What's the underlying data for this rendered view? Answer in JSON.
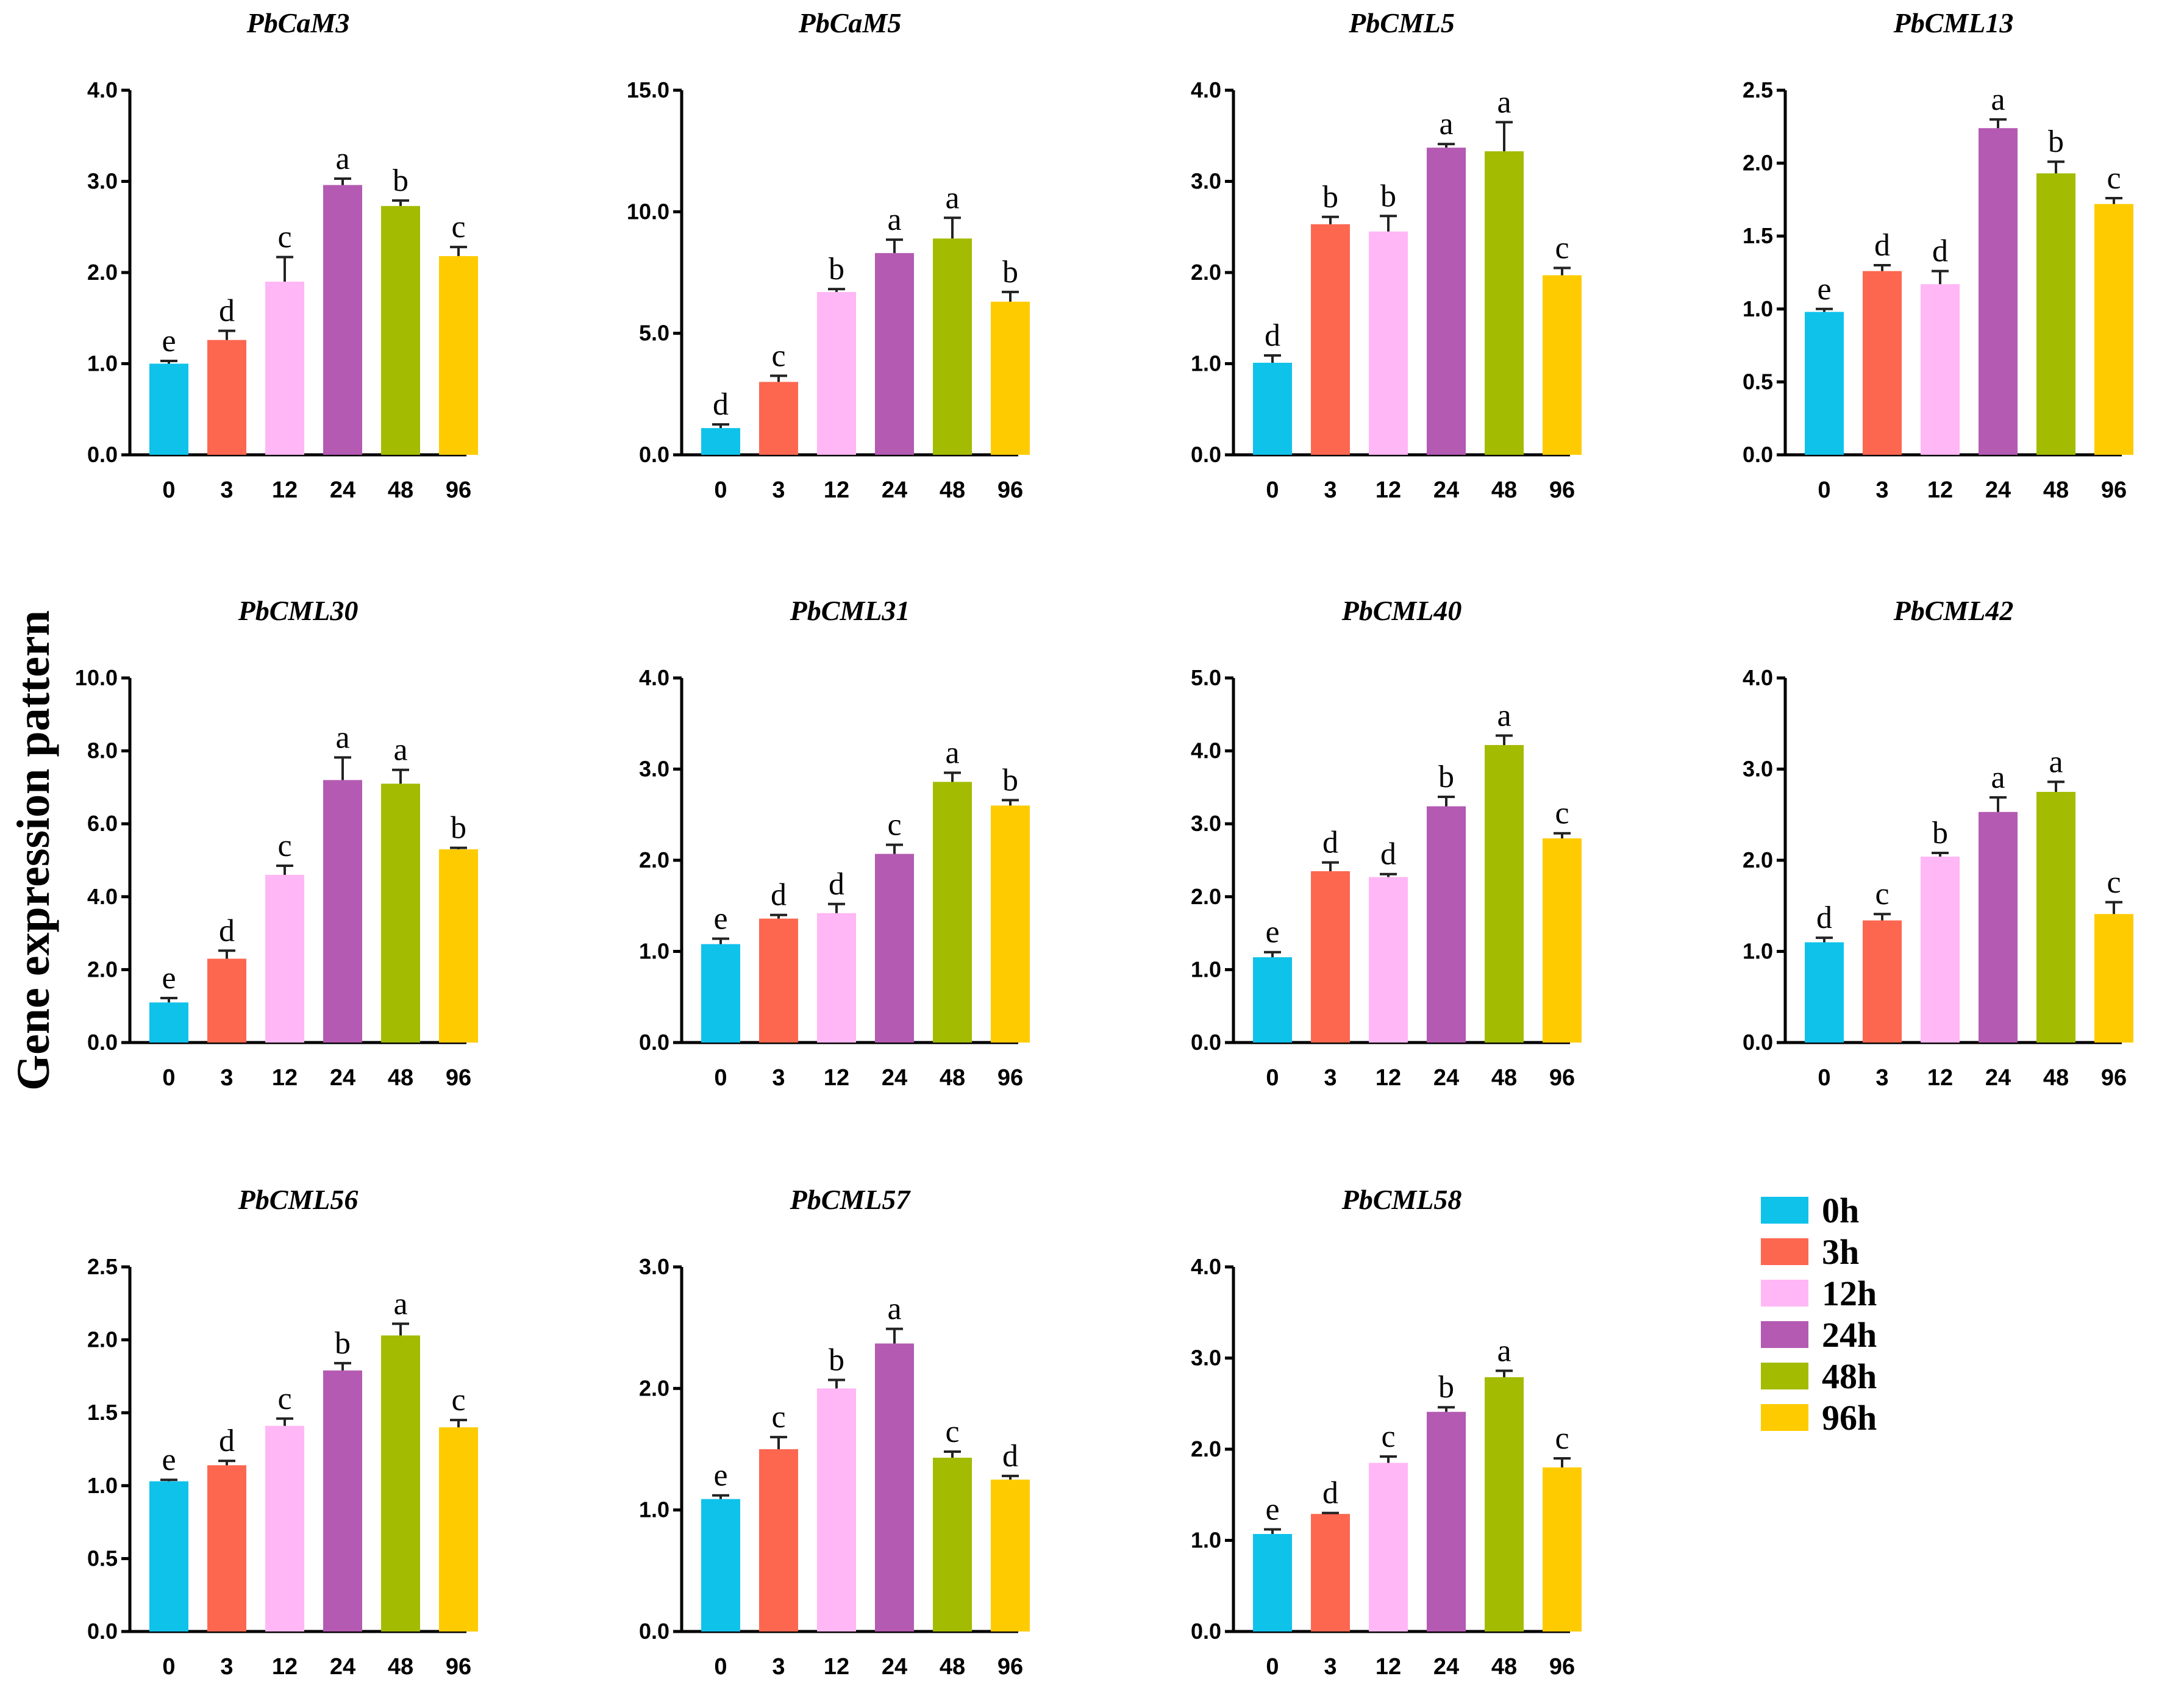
{
  "figure": {
    "ylabel": "Gene expression pattern",
    "bar_colors": [
      "#0fc2ea",
      "#fd6750",
      "#ffb7f5",
      "#b45ab2",
      "#a3bb00",
      "#fecb00"
    ]
  },
  "legend": {
    "items": [
      {
        "label": "0h",
        "color": "#0fc2ea"
      },
      {
        "label": "3h",
        "color": "#fd6750"
      },
      {
        "label": "12h",
        "color": "#ffb7f5"
      },
      {
        "label": "24h",
        "color": "#b45ab2"
      },
      {
        "label": "48h",
        "color": "#a3bb00"
      },
      {
        "label": "96h",
        "color": "#fecb00"
      }
    ]
  },
  "chart_data": [
    {
      "type": "bar",
      "title": "PbCaM3",
      "categories": [
        "0",
        "3",
        "12",
        "24",
        "48",
        "96"
      ],
      "values": [
        1.0,
        1.26,
        1.9,
        2.96,
        2.73,
        2.18
      ],
      "errors": [
        0.03,
        0.1,
        0.27,
        0.07,
        0.06,
        0.1
      ],
      "significance": [
        "e",
        "d",
        "c",
        "a",
        "b",
        "c"
      ],
      "ylim": [
        0,
        4.0
      ],
      "yticks": [
        "0.0",
        "1.0",
        "2.0",
        "3.0",
        "4.0"
      ],
      "xlabel": "",
      "ylabel": ""
    },
    {
      "type": "bar",
      "title": "PbCaM5",
      "categories": [
        "0",
        "3",
        "12",
        "24",
        "48",
        "96"
      ],
      "values": [
        1.1,
        3.0,
        6.7,
        8.3,
        8.9,
        6.3
      ],
      "errors": [
        0.15,
        0.25,
        0.12,
        0.55,
        0.85,
        0.4
      ],
      "significance": [
        "d",
        "c",
        "b",
        "a",
        "a",
        "b"
      ],
      "ylim": [
        0,
        15.0
      ],
      "yticks": [
        "0.0",
        "5.0",
        "10.0",
        "15.0"
      ],
      "xlabel": "",
      "ylabel": ""
    },
    {
      "type": "bar",
      "title": "PbCML5",
      "categories": [
        "0",
        "3",
        "12",
        "24",
        "48",
        "96"
      ],
      "values": [
        1.01,
        2.53,
        2.45,
        3.37,
        3.33,
        1.97
      ],
      "errors": [
        0.08,
        0.08,
        0.17,
        0.04,
        0.32,
        0.08
      ],
      "significance": [
        "d",
        "b",
        "b",
        "a",
        "a",
        "c"
      ],
      "ylim": [
        0,
        4.0
      ],
      "yticks": [
        "0.0",
        "1.0",
        "2.0",
        "3.0",
        "4.0"
      ],
      "xlabel": "",
      "ylabel": ""
    },
    {
      "type": "bar",
      "title": "PbCML13",
      "categories": [
        "0",
        "3",
        "12",
        "24",
        "48",
        "96"
      ],
      "values": [
        0.98,
        1.26,
        1.17,
        2.24,
        1.93,
        1.72
      ],
      "errors": [
        0.02,
        0.04,
        0.09,
        0.06,
        0.08,
        0.04
      ],
      "significance": [
        "e",
        "d",
        "d",
        "a",
        "b",
        "c"
      ],
      "ylim": [
        0,
        2.5
      ],
      "yticks": [
        "0.0",
        "0.5",
        "1.0",
        "1.5",
        "2.0",
        "2.5"
      ],
      "xlabel": "",
      "ylabel": ""
    },
    {
      "type": "bar",
      "title": "PbCML30",
      "categories": [
        "0",
        "3",
        "12",
        "24",
        "48",
        "96"
      ],
      "values": [
        1.1,
        2.3,
        4.6,
        7.2,
        7.1,
        5.3
      ],
      "errors": [
        0.12,
        0.22,
        0.25,
        0.62,
        0.38,
        0.04
      ],
      "significance": [
        "e",
        "d",
        "c",
        "a",
        "a",
        "b"
      ],
      "ylim": [
        0,
        10.0
      ],
      "yticks": [
        "0.0",
        "2.0",
        "4.0",
        "6.0",
        "8.0",
        "10.0"
      ],
      "xlabel": "",
      "ylabel": ""
    },
    {
      "type": "bar",
      "title": "PbCML31",
      "categories": [
        "0",
        "3",
        "12",
        "24",
        "48",
        "96"
      ],
      "values": [
        1.08,
        1.36,
        1.42,
        2.07,
        2.86,
        2.6
      ],
      "errors": [
        0.06,
        0.04,
        0.1,
        0.1,
        0.1,
        0.06
      ],
      "significance": [
        "e",
        "d",
        "d",
        "c",
        "a",
        "b"
      ],
      "ylim": [
        0,
        4.0
      ],
      "yticks": [
        "0.0",
        "1.0",
        "2.0",
        "3.0",
        "4.0"
      ],
      "xlabel": "",
      "ylabel": ""
    },
    {
      "type": "bar",
      "title": "PbCML40",
      "categories": [
        "0",
        "3",
        "12",
        "24",
        "48",
        "96"
      ],
      "values": [
        1.17,
        2.35,
        2.27,
        3.24,
        4.08,
        2.8
      ],
      "errors": [
        0.07,
        0.12,
        0.04,
        0.13,
        0.13,
        0.07
      ],
      "significance": [
        "e",
        "d",
        "d",
        "b",
        "a",
        "c"
      ],
      "ylim": [
        0,
        5.0
      ],
      "yticks": [
        "0.0",
        "1.0",
        "2.0",
        "3.0",
        "4.0",
        "5.0"
      ],
      "xlabel": "",
      "ylabel": ""
    },
    {
      "type": "bar",
      "title": "PbCML42",
      "categories": [
        "0",
        "3",
        "12",
        "24",
        "48",
        "96"
      ],
      "values": [
        1.1,
        1.34,
        2.04,
        2.53,
        2.75,
        1.41
      ],
      "errors": [
        0.05,
        0.07,
        0.04,
        0.16,
        0.11,
        0.13
      ],
      "significance": [
        "d",
        "c",
        "b",
        "a",
        "a",
        "c"
      ],
      "ylim": [
        0,
        4.0
      ],
      "yticks": [
        "0.0",
        "1.0",
        "2.0",
        "3.0",
        "4.0"
      ],
      "xlabel": "",
      "ylabel": ""
    },
    {
      "type": "bar",
      "title": "PbCML56",
      "categories": [
        "0",
        "3",
        "12",
        "24",
        "48",
        "96"
      ],
      "values": [
        1.03,
        1.14,
        1.41,
        1.79,
        2.03,
        1.4
      ],
      "errors": [
        0.01,
        0.03,
        0.05,
        0.05,
        0.08,
        0.05
      ],
      "significance": [
        "e",
        "d",
        "c",
        "b",
        "a",
        "c"
      ],
      "ylim": [
        0,
        2.5
      ],
      "yticks": [
        "0.0",
        "0.5",
        "1.0",
        "1.5",
        "2.0",
        "2.5"
      ],
      "xlabel": "",
      "ylabel": ""
    },
    {
      "type": "bar",
      "title": "PbCML57",
      "categories": [
        "0",
        "3",
        "12",
        "24",
        "48",
        "96"
      ],
      "values": [
        1.09,
        1.5,
        2.0,
        2.37,
        1.43,
        1.25
      ],
      "errors": [
        0.03,
        0.1,
        0.07,
        0.12,
        0.05,
        0.03
      ],
      "significance": [
        "e",
        "c",
        "b",
        "a",
        "c",
        "d"
      ],
      "ylim": [
        0,
        3.0
      ],
      "yticks": [
        "0.0",
        "1.0",
        "2.0",
        "3.0"
      ],
      "xlabel": "",
      "ylabel": ""
    },
    {
      "type": "bar",
      "title": "PbCML58",
      "categories": [
        "0",
        "3",
        "12",
        "24",
        "48",
        "96"
      ],
      "values": [
        1.07,
        1.29,
        1.85,
        2.41,
        2.79,
        1.8
      ],
      "errors": [
        0.05,
        0.01,
        0.07,
        0.05,
        0.07,
        0.1
      ],
      "significance": [
        "e",
        "d",
        "c",
        "b",
        "a",
        "c"
      ],
      "ylim": [
        0,
        4.0
      ],
      "yticks": [
        "0.0",
        "1.0",
        "2.0",
        "3.0",
        "4.0"
      ],
      "xlabel": "",
      "ylabel": ""
    }
  ]
}
